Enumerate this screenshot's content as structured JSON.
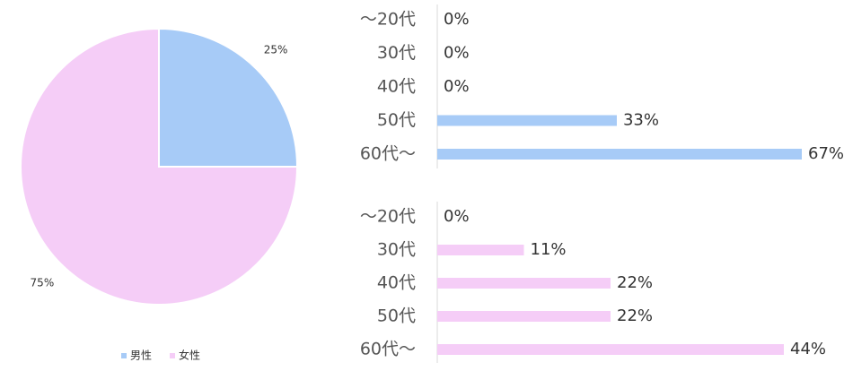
{
  "chart_data": [
    {
      "type": "pie",
      "categories": [
        "男性",
        "女性"
      ],
      "values": [
        25,
        75
      ],
      "value_labels": [
        "25%",
        "75%"
      ],
      "colors": [
        "#a7cbf7",
        "#f5cdf7"
      ],
      "legend": "bottom"
    },
    {
      "type": "bar",
      "orientation": "horizontal",
      "categories": [
        "～20代",
        "30代",
        "40代",
        "50代",
        "60代～"
      ],
      "values": [
        0,
        0,
        0,
        33,
        67
      ],
      "value_labels": [
        "0%",
        "0%",
        "0%",
        "33%",
        "67%"
      ],
      "color": "#a7cbf7"
    },
    {
      "type": "bar",
      "orientation": "horizontal",
      "categories": [
        "～20代",
        "30代",
        "40代",
        "50代",
        "60代～"
      ],
      "values": [
        0,
        11,
        22,
        22,
        44
      ],
      "value_labels": [
        "0%",
        "11%",
        "22%",
        "22%",
        "44%"
      ],
      "color": "#f5cdf7"
    }
  ]
}
